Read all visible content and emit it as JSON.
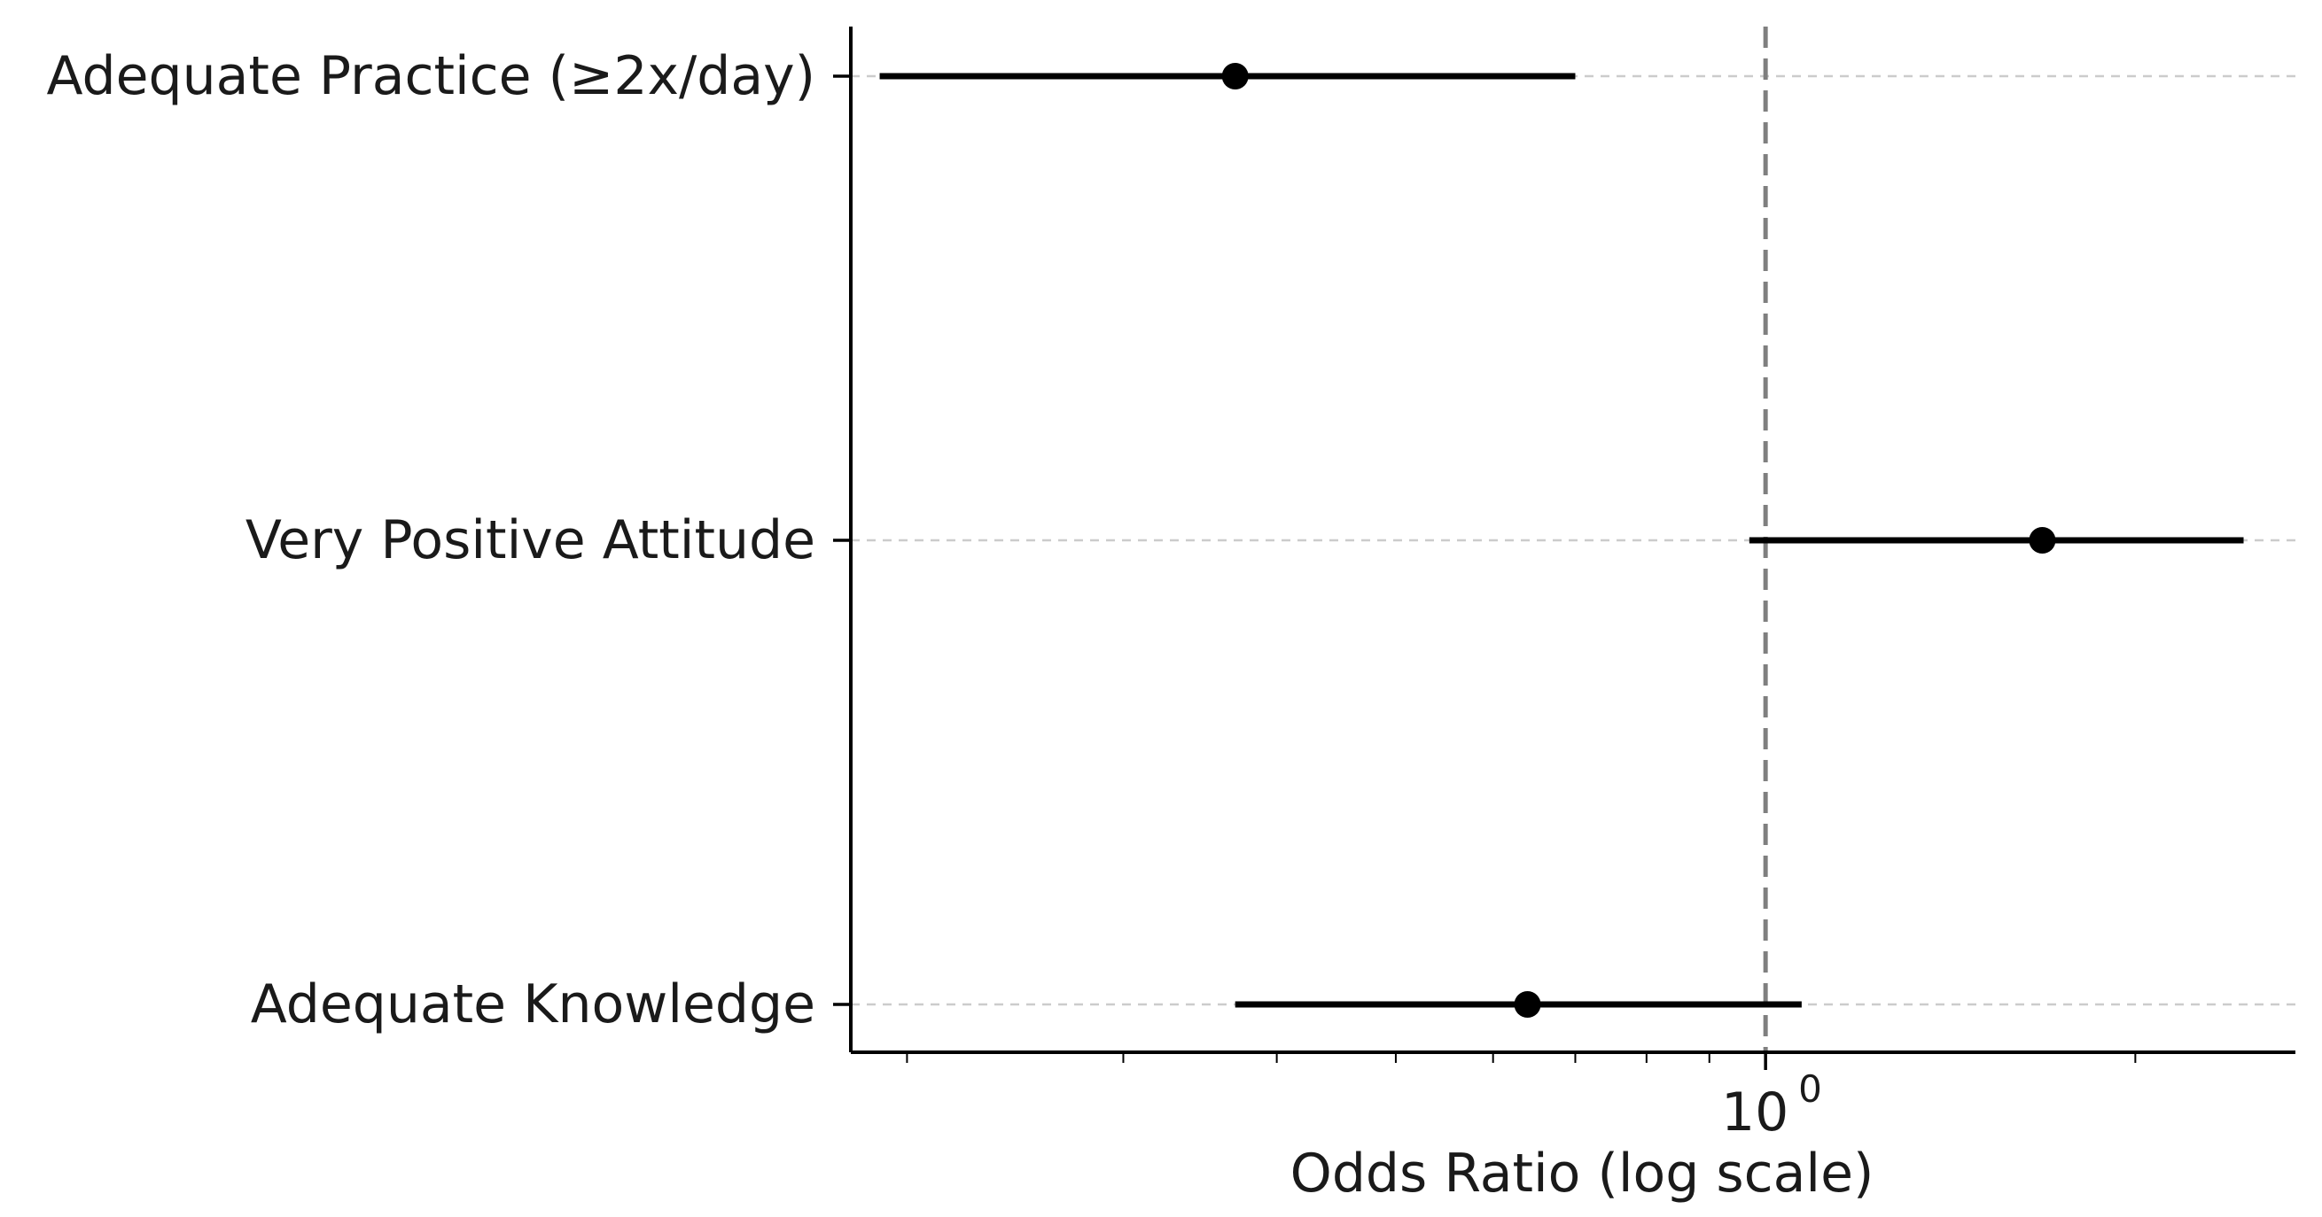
{
  "chart_data": {
    "type": "scatter",
    "subtype": "forest-plot",
    "title": "",
    "xlabel": "Odds Ratio (log scale)",
    "ylabel": "",
    "x_scale": "log",
    "xlim": [
      0.18,
      2.7
    ],
    "reference_line": {
      "x": 1.0,
      "style": "dashed",
      "color": "#7f7f7f"
    },
    "x_ticks": [
      {
        "value": 1,
        "base": "10",
        "exponent": "0"
      }
    ],
    "x_minor_ticks": [
      0.2,
      0.3,
      0.4,
      0.5,
      0.6,
      0.7,
      0.8,
      0.9,
      2
    ],
    "grid": {
      "y": true,
      "style": "dashed",
      "color": "#cccccc"
    },
    "categories": [
      "Adequate Practice (≥2x/day)",
      "Very Positive Attitude",
      "Adequate Knowledge"
    ],
    "series": [
      {
        "values": [
          {
            "label": "Adequate Practice (≥2x/day)",
            "or": 0.37,
            "ci_low": 0.19,
            "ci_high": 0.7
          },
          {
            "label": "Very Positive Attitude",
            "or": 1.68,
            "ci_low": 0.97,
            "ci_high": 2.45
          },
          {
            "label": "Adequate Knowledge",
            "or": 0.64,
            "ci_low": 0.37,
            "ci_high": 1.07
          }
        ]
      }
    ],
    "marker_color": "#000000",
    "line_color": "#000000"
  }
}
